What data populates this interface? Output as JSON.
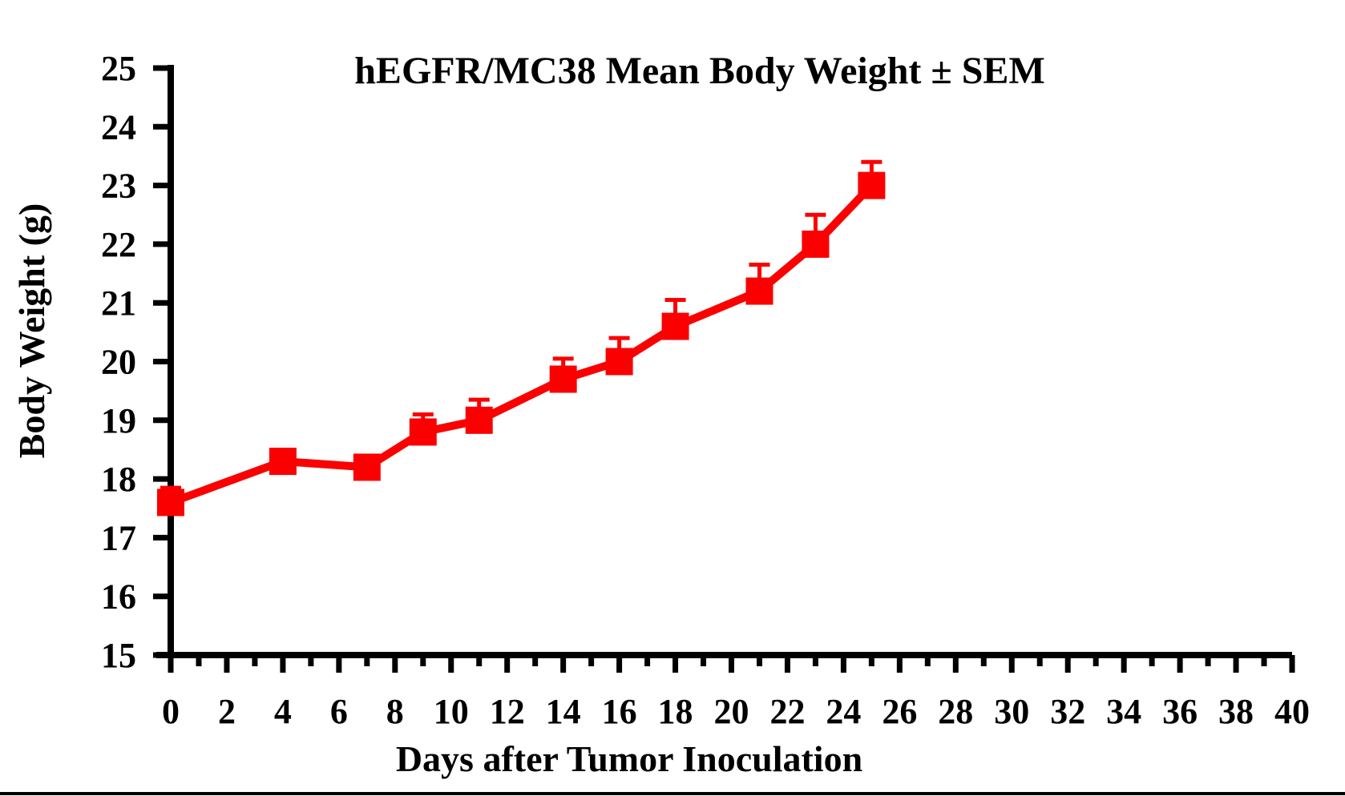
{
  "chart_data": {
    "type": "line",
    "title": "hEGFR/MC38 Mean Body Weight ± SEM",
    "xlabel": "Days after Tumor Inoculation",
    "ylabel": "Body Weight (g)",
    "x": [
      0,
      4,
      7,
      9,
      11,
      14,
      16,
      18,
      21,
      23,
      25
    ],
    "series": [
      {
        "name": "hEGFR/MC38 mean body weight",
        "values": [
          17.6,
          18.3,
          18.2,
          18.8,
          19.0,
          19.7,
          20.0,
          20.6,
          21.2,
          22.0,
          23.0
        ],
        "sem_upper": [
          0.25,
          0.15,
          0.15,
          0.3,
          0.35,
          0.35,
          0.4,
          0.45,
          0.45,
          0.5,
          0.4
        ],
        "color": "#FA0000",
        "marker": "square"
      }
    ],
    "xlim": [
      0,
      40
    ],
    "ylim": [
      15,
      25
    ],
    "x_major_ticks": [
      0,
      2,
      4,
      6,
      8,
      10,
      12,
      14,
      16,
      18,
      20,
      22,
      24,
      26,
      28,
      30,
      32,
      34,
      36,
      38,
      40
    ],
    "x_minor_ticks": [
      1,
      3,
      5,
      7,
      9,
      11,
      13,
      15,
      17,
      19,
      21,
      23,
      25,
      27,
      29,
      31,
      33,
      35,
      37,
      39
    ],
    "y_major_ticks": [
      15,
      16,
      17,
      18,
      19,
      20,
      21,
      22,
      23,
      24,
      25
    ],
    "grid": false,
    "legend": "none",
    "error_bars": "SEM, upper side only, with caps",
    "axis_color": "#000000",
    "background_color": "#FFFFFF"
  }
}
